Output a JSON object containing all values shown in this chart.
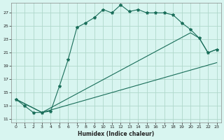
{
  "title": "",
  "xlabel": "Humidex (Indice chaleur)",
  "bg_color": "#d8f5f0",
  "grid_color": "#b0d8cc",
  "line_color": "#1a6e5a",
  "xlim": [
    -0.5,
    23.5
  ],
  "ylim": [
    10.5,
    28.5
  ],
  "xticks": [
    0,
    1,
    2,
    3,
    4,
    5,
    6,
    7,
    8,
    9,
    10,
    11,
    12,
    13,
    14,
    15,
    16,
    17,
    18,
    19,
    20,
    21,
    22,
    23
  ],
  "yticks": [
    11,
    13,
    15,
    17,
    19,
    21,
    23,
    25,
    27
  ],
  "line1_x": [
    0,
    1,
    2,
    3,
    4,
    5,
    6,
    7,
    8,
    9,
    10,
    11,
    12,
    13,
    14,
    15,
    16,
    17,
    18,
    19,
    20,
    21,
    22,
    23
  ],
  "line1_y": [
    14.0,
    13.0,
    12.0,
    12.0,
    12.2,
    16.0,
    20.0,
    24.8,
    25.5,
    26.3,
    27.5,
    27.0,
    28.2,
    27.2,
    27.5,
    27.0,
    27.0,
    27.0,
    26.7,
    25.5,
    24.5,
    23.2,
    21.0,
    21.5
  ],
  "line2_x": [
    0,
    3,
    20,
    21,
    22,
    23
  ],
  "line2_y": [
    14.0,
    12.0,
    24.0,
    23.2,
    21.0,
    21.5
  ],
  "line3_x": [
    0,
    3,
    23
  ],
  "line3_y": [
    14.0,
    12.0,
    19.5
  ],
  "marker": "*",
  "markersize": 3,
  "tick_fontsize": 4.5,
  "xlabel_fontsize": 5.5
}
